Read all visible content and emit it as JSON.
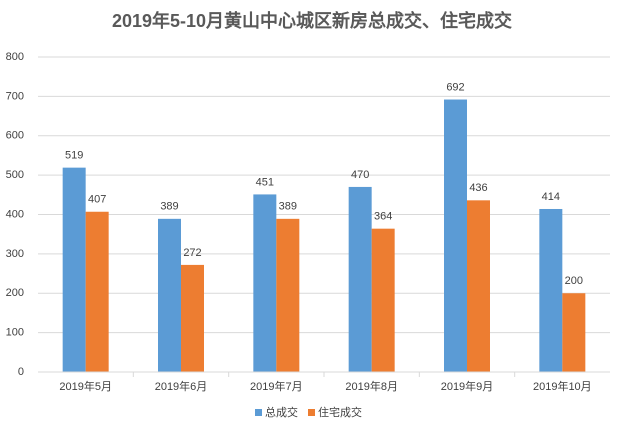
{
  "chart_data": {
    "type": "bar",
    "title": "2019年5-10月黄山中心城区新房总成交、住宅成交",
    "categories": [
      "2019年5月",
      "2019年6月",
      "2019年7月",
      "2019年8月",
      "2019年9月",
      "2019年10月"
    ],
    "series": [
      {
        "name": "总成交",
        "color": "#5b9bd5",
        "values": [
          519,
          389,
          451,
          470,
          692,
          414
        ]
      },
      {
        "name": "住宅成交",
        "color": "#ed7d31",
        "values": [
          407,
          272,
          389,
          364,
          436,
          200
        ]
      }
    ],
    "ylim": [
      0,
      800
    ],
    "yticks": [
      0,
      100,
      200,
      300,
      400,
      500,
      600,
      700,
      800
    ],
    "grid": true,
    "legend": "bottom"
  }
}
